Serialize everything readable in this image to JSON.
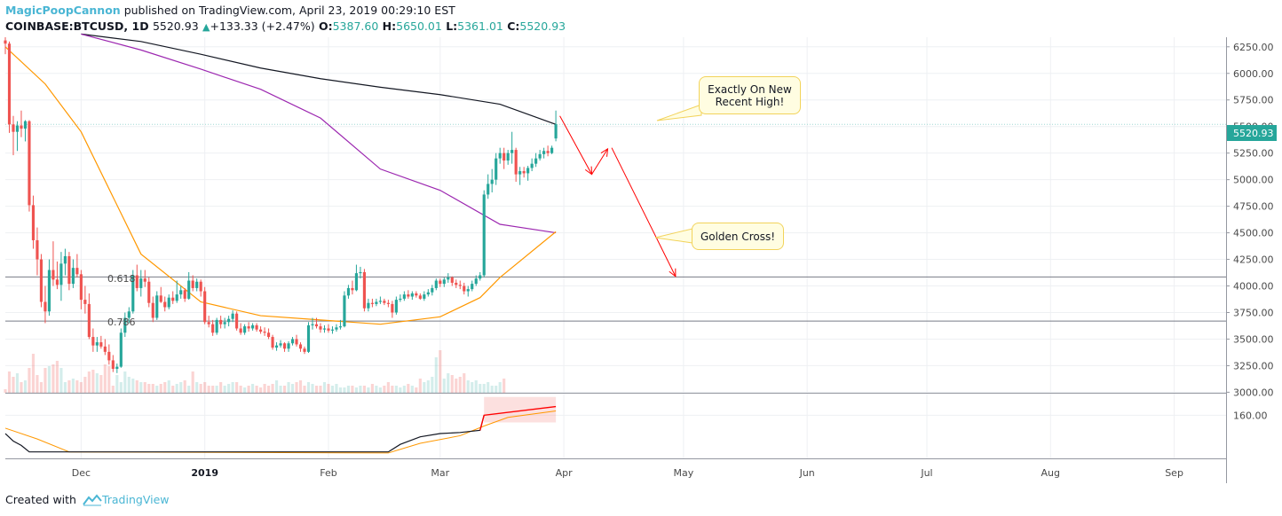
{
  "header": {
    "author": "MagicPoopCannon",
    "published": "published on TradingView.com, April 23, 2019 00:29:10 EST"
  },
  "ticker": {
    "symbol": "COINBASE:BTCUSD, 1D",
    "last": "5520.93",
    "change": "+133.33 (+2.47%)",
    "open_label": "O:",
    "open": "5387.60",
    "high_label": "H:",
    "high": "5650.01",
    "low_label": "L:",
    "low": "5361.01",
    "close_label": "C:",
    "close": "5520.93"
  },
  "annotations": {
    "callout_high": "Exactly On New\nRecent High!",
    "callout_cross": "Golden Cross!",
    "fib_618": "0.618",
    "fib_786": "0.786",
    "price_tag": "5520.93"
  },
  "footer": {
    "created_with": "Created with",
    "brand": "TradingView"
  },
  "colors": {
    "up": "#26a69a",
    "down": "#ef5350",
    "ma_black": "#131722",
    "ma_purple": "#9c27b0",
    "ma_orange": "#ff9800",
    "arrow": "#ff0000",
    "callout_bg": "#fffde1",
    "brand": "#4ab6d4"
  },
  "chart_data": {
    "type": "candlestick",
    "symbol": "COINBASE:BTCUSD",
    "interval": "1D",
    "price_axis": {
      "ticks": [
        6250,
        6000,
        5750,
        5500,
        5250,
        5000,
        4750,
        4500,
        4250,
        4000,
        3750,
        3500,
        3250,
        3000
      ],
      "tick_labels": [
        "6250.00",
        "6000.00",
        "5750.00",
        "5500.00",
        "5250.00",
        "5000.00",
        "4750.00",
        "4500.00",
        "4250.00",
        "4000.00",
        "3750.00",
        "3500.00",
        "3250.00",
        "3000.00"
      ],
      "ylim": [
        2995,
        6340
      ]
    },
    "time_axis": {
      "labels": [
        "Dec",
        "2019",
        "Feb",
        "Mar",
        "Apr",
        "May",
        "Jun",
        "Jul",
        "Aug",
        "Sep"
      ],
      "label_days": [
        6,
        37,
        68,
        96,
        127,
        157,
        188,
        218,
        249,
        280
      ],
      "xlim": [
        -13,
        293
      ],
      "bold": [
        "2019"
      ]
    },
    "fib_levels": [
      {
        "label": "0.618",
        "price": 4085
      },
      {
        "label": "0.786",
        "price": 3670
      }
    ],
    "indicator_pane": {
      "ticks": [
        160
      ],
      "tick_labels": [
        "160.00"
      ]
    },
    "candles": [
      [
        -13,
        6310,
        6340,
        6180,
        6280
      ],
      [
        -12,
        6280,
        6300,
        5440,
        5520
      ],
      [
        -11,
        5520,
        5600,
        5230,
        5450
      ],
      [
        -10,
        5450,
        5550,
        5270,
        5510
      ],
      [
        -9,
        5510,
        5650,
        5400,
        5480
      ],
      [
        -8,
        5480,
        5560,
        5360,
        5550
      ],
      [
        -7,
        5550,
        5560,
        4700,
        4760
      ],
      [
        -6,
        4760,
        4850,
        4350,
        4430
      ],
      [
        -5,
        4430,
        4550,
        4100,
        4250
      ],
      [
        -4,
        4250,
        4300,
        3800,
        3850
      ],
      [
        -3,
        3850,
        4000,
        3650,
        3760
      ],
      [
        -2,
        3760,
        4250,
        3720,
        4150
      ],
      [
        -1,
        4150,
        4420,
        4000,
        4060
      ],
      [
        0,
        4060,
        4230,
        3970,
        4010
      ],
      [
        1,
        4010,
        4320,
        3860,
        4210
      ],
      [
        2,
        4210,
        4350,
        4100,
        4280
      ],
      [
        3,
        4280,
        4320,
        3960,
        4020
      ],
      [
        4,
        4020,
        4250,
        3980,
        4170
      ],
      [
        5,
        4170,
        4300,
        4080,
        4110
      ],
      [
        6,
        4110,
        4150,
        3780,
        3870
      ],
      [
        7,
        3870,
        4000,
        3740,
        3830
      ],
      [
        8,
        3830,
        3930,
        3500,
        3520
      ],
      [
        9,
        3520,
        3600,
        3380,
        3440
      ],
      [
        10,
        3440,
        3520,
        3380,
        3470
      ],
      [
        11,
        3470,
        3530,
        3410,
        3430
      ],
      [
        12,
        3430,
        3500,
        3350,
        3380
      ],
      [
        13,
        3380,
        3450,
        3260,
        3300
      ],
      [
        14,
        3300,
        3350,
        3190,
        3220
      ],
      [
        15,
        3220,
        3270,
        3180,
        3240
      ],
      [
        16,
        3240,
        3600,
        3230,
        3560
      ],
      [
        17,
        3560,
        3750,
        3520,
        3700
      ],
      [
        18,
        3700,
        3800,
        3650,
        3760
      ],
      [
        19,
        3760,
        4150,
        3740,
        4100
      ],
      [
        20,
        4100,
        4200,
        3950,
        3980
      ],
      [
        21,
        3980,
        4150,
        3900,
        4070
      ],
      [
        22,
        4070,
        4150,
        3990,
        4040
      ],
      [
        23,
        4040,
        4080,
        3800,
        3840
      ],
      [
        24,
        3840,
        3900,
        3660,
        3700
      ],
      [
        25,
        3700,
        3950,
        3680,
        3910
      ],
      [
        26,
        3910,
        3990,
        3840,
        3850
      ],
      [
        27,
        3850,
        3900,
        3760,
        3800
      ],
      [
        28,
        3800,
        3920,
        3780,
        3890
      ],
      [
        29,
        3890,
        3950,
        3830,
        3860
      ],
      [
        30,
        3860,
        4050,
        3840,
        3920
      ],
      [
        31,
        3920,
        4000,
        3880,
        3960
      ],
      [
        32,
        3960,
        3980,
        3850,
        3880
      ],
      [
        33,
        3880,
        4130,
        3870,
        4050
      ],
      [
        34,
        4050,
        4100,
        3950,
        3980
      ],
      [
        35,
        3980,
        4070,
        3950,
        4040
      ],
      [
        36,
        4040,
        4060,
        3900,
        3950
      ],
      [
        37,
        3950,
        3990,
        3640,
        3660
      ],
      [
        38,
        3660,
        3720,
        3610,
        3640
      ],
      [
        39,
        3640,
        3680,
        3530,
        3560
      ],
      [
        40,
        3560,
        3700,
        3540,
        3680
      ],
      [
        41,
        3680,
        3720,
        3600,
        3640
      ],
      [
        42,
        3640,
        3700,
        3600,
        3660
      ],
      [
        43,
        3660,
        3720,
        3620,
        3690
      ],
      [
        44,
        3690,
        3770,
        3660,
        3740
      ],
      [
        45,
        3740,
        3760,
        3580,
        3600
      ],
      [
        46,
        3600,
        3650,
        3540,
        3560
      ],
      [
        47,
        3560,
        3640,
        3540,
        3620
      ],
      [
        48,
        3620,
        3660,
        3570,
        3600
      ],
      [
        49,
        3600,
        3650,
        3580,
        3630
      ],
      [
        50,
        3630,
        3650,
        3570,
        3590
      ],
      [
        51,
        3590,
        3620,
        3550,
        3570
      ],
      [
        52,
        3570,
        3610,
        3530,
        3560
      ],
      [
        53,
        3560,
        3600,
        3500,
        3520
      ],
      [
        54,
        3520,
        3540,
        3400,
        3420
      ],
      [
        55,
        3420,
        3470,
        3390,
        3440
      ],
      [
        56,
        3440,
        3490,
        3420,
        3460
      ],
      [
        57,
        3460,
        3470,
        3380,
        3410
      ],
      [
        58,
        3410,
        3480,
        3380,
        3460
      ],
      [
        59,
        3460,
        3520,
        3440,
        3500
      ],
      [
        60,
        3500,
        3540,
        3430,
        3450
      ],
      [
        61,
        3450,
        3470,
        3380,
        3410
      ],
      [
        62,
        3410,
        3430,
        3360,
        3380
      ],
      [
        63,
        3380,
        3660,
        3370,
        3630
      ],
      [
        64,
        3630,
        3700,
        3590,
        3640
      ],
      [
        65,
        3640,
        3700,
        3600,
        3620
      ],
      [
        66,
        3620,
        3650,
        3560,
        3590
      ],
      [
        67,
        3590,
        3630,
        3560,
        3600
      ],
      [
        68,
        3600,
        3640,
        3560,
        3580
      ],
      [
        69,
        3580,
        3620,
        3550,
        3590
      ],
      [
        70,
        3590,
        3640,
        3570,
        3610
      ],
      [
        71,
        3610,
        3680,
        3590,
        3620
      ],
      [
        72,
        3620,
        3950,
        3610,
        3910
      ],
      [
        73,
        3910,
        4010,
        3880,
        3980
      ],
      [
        74,
        3980,
        4050,
        3920,
        3960
      ],
      [
        75,
        3960,
        4200,
        3950,
        4120
      ],
      [
        76,
        4120,
        4180,
        4070,
        4130
      ],
      [
        77,
        4130,
        4160,
        3760,
        3790
      ],
      [
        78,
        3790,
        3880,
        3760,
        3840
      ],
      [
        79,
        3840,
        3880,
        3800,
        3830
      ],
      [
        80,
        3830,
        3880,
        3810,
        3850
      ],
      [
        81,
        3850,
        3900,
        3830,
        3860
      ],
      [
        82,
        3860,
        3880,
        3820,
        3840
      ],
      [
        83,
        3840,
        3870,
        3800,
        3830
      ],
      [
        84,
        3830,
        3860,
        3700,
        3750
      ],
      [
        85,
        3750,
        3900,
        3730,
        3870
      ],
      [
        86,
        3870,
        3920,
        3850,
        3880
      ],
      [
        87,
        3880,
        3950,
        3860,
        3920
      ],
      [
        88,
        3920,
        3960,
        3880,
        3900
      ],
      [
        89,
        3900,
        3950,
        3870,
        3930
      ],
      [
        90,
        3930,
        3950,
        3890,
        3910
      ],
      [
        91,
        3910,
        3930,
        3870,
        3880
      ],
      [
        92,
        3880,
        3950,
        3860,
        3920
      ],
      [
        93,
        3920,
        3970,
        3900,
        3940
      ],
      [
        94,
        3940,
        4010,
        3910,
        3980
      ],
      [
        95,
        3980,
        4070,
        3960,
        4050
      ],
      [
        96,
        4050,
        4070,
        3990,
        4020
      ],
      [
        97,
        4020,
        4080,
        3990,
        4060
      ],
      [
        98,
        4060,
        4120,
        4030,
        4080
      ],
      [
        99,
        4080,
        4090,
        4000,
        4030
      ],
      [
        100,
        4030,
        4060,
        3980,
        4010
      ],
      [
        101,
        4010,
        4050,
        3970,
        4000
      ],
      [
        102,
        4000,
        4030,
        3920,
        3950
      ],
      [
        103,
        3950,
        4000,
        3900,
        3970
      ],
      [
        104,
        3970,
        4050,
        3950,
        4020
      ],
      [
        105,
        4020,
        4100,
        4000,
        4070
      ],
      [
        106,
        4070,
        4130,
        4050,
        4100
      ],
      [
        107,
        4100,
        4900,
        4080,
        4860
      ],
      [
        108,
        4860,
        5050,
        4820,
        4960
      ],
      [
        109,
        4960,
        5100,
        4880,
        5000
      ],
      [
        110,
        5000,
        5250,
        4950,
        5200
      ],
      [
        111,
        5200,
        5300,
        5150,
        5250
      ],
      [
        112,
        5250,
        5300,
        5100,
        5180
      ],
      [
        113,
        5180,
        5280,
        5140,
        5250
      ],
      [
        114,
        5250,
        5450,
        5150,
        5280
      ],
      [
        115,
        5280,
        5300,
        4980,
        5050
      ],
      [
        116,
        5050,
        5120,
        4950,
        5080
      ],
      [
        117,
        5080,
        5120,
        5020,
        5060
      ],
      [
        118,
        5060,
        5130,
        4990,
        5110
      ],
      [
        119,
        5110,
        5200,
        5080,
        5150
      ],
      [
        120,
        5150,
        5250,
        5120,
        5200
      ],
      [
        121,
        5200,
        5280,
        5180,
        5240
      ],
      [
        122,
        5240,
        5300,
        5200,
        5270
      ],
      [
        123,
        5270,
        5320,
        5220,
        5250
      ],
      [
        124,
        5250,
        5320,
        5240,
        5300
      ],
      [
        125,
        5387.6,
        5650.01,
        5361.01,
        5520.93
      ]
    ],
    "volume": {
      "scale_max": 300,
      "values": [
        20,
        120,
        90,
        110,
        60,
        70,
        140,
        220,
        100,
        60,
        140,
        150,
        160,
        180,
        140,
        60,
        70,
        80,
        70,
        60,
        90,
        120,
        130,
        110,
        100,
        160,
        150,
        40,
        100,
        60,
        120,
        90,
        80,
        70,
        60,
        60,
        50,
        50,
        40,
        50,
        60,
        70,
        40,
        50,
        60,
        70,
        40,
        120,
        60,
        50,
        60,
        40,
        40,
        40,
        60,
        40,
        50,
        60,
        60,
        40,
        30,
        40,
        50,
        40,
        30,
        50,
        40,
        50,
        70,
        40,
        40,
        60,
        50,
        60,
        70,
        40,
        60,
        50,
        40,
        40,
        60,
        50,
        40,
        50,
        30,
        30,
        40,
        40,
        30,
        40,
        40,
        30,
        50,
        40,
        30,
        40,
        60,
        40,
        40,
        30,
        40,
        50,
        40,
        30,
        80,
        60,
        70,
        90,
        200,
        240,
        80,
        110,
        100,
        80,
        90,
        110,
        70,
        60,
        70,
        50,
        50,
        60,
        40,
        40,
        60,
        80
      ]
    },
    "moving_averages": [
      {
        "color": "#131722",
        "points": [
          [
            6,
            6370
          ],
          [
            21,
            6300
          ],
          [
            36,
            6180
          ],
          [
            51,
            6050
          ],
          [
            66,
            5950
          ],
          [
            81,
            5870
          ],
          [
            96,
            5800
          ],
          [
            111,
            5710
          ],
          [
            125,
            5520
          ]
        ]
      },
      {
        "color": "#9c27b0",
        "points": [
          [
            6,
            6370
          ],
          [
            21,
            6220
          ],
          [
            36,
            6040
          ],
          [
            51,
            5850
          ],
          [
            66,
            5580
          ],
          [
            81,
            5100
          ],
          [
            96,
            4900
          ],
          [
            111,
            4580
          ],
          [
            125,
            4500
          ]
        ]
      },
      {
        "color": "#ff9800",
        "points": [
          [
            -13,
            6250
          ],
          [
            -3,
            5900
          ],
          [
            6,
            5450
          ],
          [
            21,
            4300
          ],
          [
            36,
            3850
          ],
          [
            51,
            3720
          ],
          [
            66,
            3680
          ],
          [
            81,
            3640
          ],
          [
            96,
            3710
          ],
          [
            106,
            3890
          ],
          [
            111,
            4080
          ],
          [
            125,
            4510
          ]
        ]
      }
    ],
    "indicator": {
      "main_color": "#131722",
      "highlight_color": "#ff0000",
      "signal_color": "#ff9800",
      "main": [
        [
          -13,
          143
        ],
        [
          -11,
          136
        ],
        [
          -9,
          132
        ],
        [
          -7,
          126
        ],
        [
          83,
          126
        ],
        [
          86,
          133
        ],
        [
          91,
          140
        ],
        [
          96,
          143
        ],
        [
          101,
          144
        ],
        [
          106,
          146
        ],
        [
          107,
          160
        ],
        [
          125,
          168
        ]
      ],
      "signal": [
        [
          -13,
          148
        ],
        [
          -5,
          138
        ],
        [
          3,
          126
        ],
        [
          83,
          125
        ],
        [
          91,
          134
        ],
        [
          101,
          141
        ],
        [
          107,
          150
        ],
        [
          113,
          158
        ],
        [
          125,
          164
        ]
      ]
    },
    "drawn_arrows": [
      {
        "from": [
          126,
          5600
        ],
        "to": [
          134,
          5050
        ]
      },
      {
        "from": [
          134,
          5050
        ],
        "to": [
          138,
          5290
        ]
      },
      {
        "from": [
          139,
          5300
        ],
        "to": [
          155,
          4090
        ]
      }
    ]
  }
}
